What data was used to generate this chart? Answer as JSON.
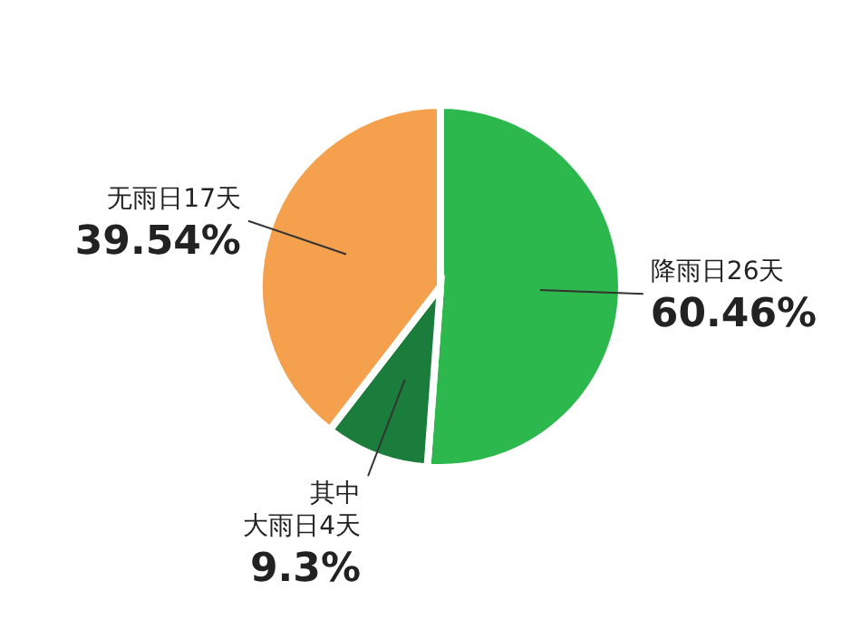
{
  "chart_data": {
    "type": "pie",
    "categories": [
      "降雨日26天",
      "大雨日4天",
      "无雨日17天"
    ],
    "values": [
      51.16,
      9.3,
      39.54
    ],
    "value_labels": [
      null,
      "9.3%",
      "39.54%"
    ],
    "annotations": [
      "60.46%",
      "其中"
    ],
    "colors": [
      "#2db84d",
      "#1a7d3b",
      "#f4a04c"
    ]
  }
}
